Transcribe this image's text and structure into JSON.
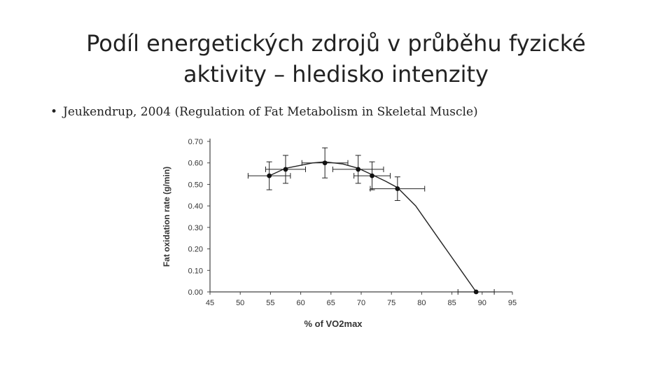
{
  "slide": {
    "title_line1": "Podíl energetických zdrojů v průběhu fyzické",
    "title_line2": "aktivity – hledisko intenzity",
    "bullet_marker": "•",
    "bullet_text": "Jeukendrup, 2004 (Regulation of Fat Metabolism in Skeletal Muscle)"
  },
  "chart_data": {
    "type": "scatter",
    "title": "",
    "xlabel": "% of VO2max",
    "ylabel": "Fat oxidation rate (g/min)",
    "xlim": [
      45,
      95
    ],
    "ylim": [
      0,
      0.7
    ],
    "xticks": [
      "45",
      "50",
      "55",
      "60",
      "65",
      "70",
      "75",
      "80",
      "85",
      "90",
      "95"
    ],
    "yticks": [
      "0.00",
      "0.10",
      "0.20",
      "0.30",
      "0.40",
      "0.50",
      "0.60",
      "0.70"
    ],
    "grid": false,
    "legend": "none",
    "points": [
      {
        "x": 54.8,
        "y": 0.54,
        "xerr": 3.5,
        "yerr": 0.065
      },
      {
        "x": 57.5,
        "y": 0.57,
        "xerr": 3.3,
        "yerr": 0.065
      },
      {
        "x": 64.0,
        "y": 0.6,
        "xerr": 3.8,
        "yerr": 0.07
      },
      {
        "x": 69.5,
        "y": 0.57,
        "xerr": 4.2,
        "yerr": 0.065
      },
      {
        "x": 71.8,
        "y": 0.54,
        "xerr": 3.0,
        "yerr": 0.065
      },
      {
        "x": 76.0,
        "y": 0.48,
        "xerr": 4.5,
        "yerr": 0.055
      },
      {
        "x": 89.0,
        "y": 0.0,
        "xerr": 3.0,
        "yerr": 0.0
      }
    ],
    "curve": [
      {
        "x": 54.8,
        "y": 0.54
      },
      {
        "x": 57.5,
        "y": 0.575
      },
      {
        "x": 62.0,
        "y": 0.6
      },
      {
        "x": 64.0,
        "y": 0.605
      },
      {
        "x": 67.0,
        "y": 0.595
      },
      {
        "x": 69.5,
        "y": 0.575
      },
      {
        "x": 71.8,
        "y": 0.545
      },
      {
        "x": 74.0,
        "y": 0.515
      },
      {
        "x": 76.0,
        "y": 0.485
      },
      {
        "x": 79.0,
        "y": 0.4
      },
      {
        "x": 83.0,
        "y": 0.24
      },
      {
        "x": 86.5,
        "y": 0.1
      },
      {
        "x": 89.0,
        "y": 0.0
      }
    ],
    "colors": {
      "line": "#222222",
      "marker": "#111111",
      "axis": "#444444"
    }
  }
}
